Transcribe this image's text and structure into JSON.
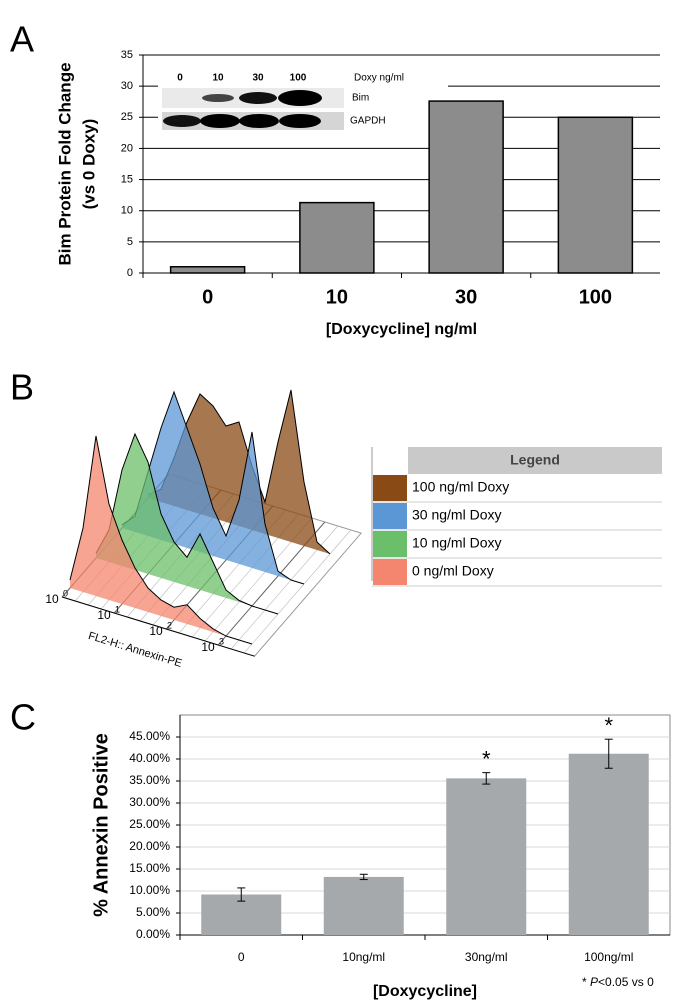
{
  "chart_data": [
    {
      "type": "bar",
      "panel": "A",
      "ylabel": [
        "Bim Protein Fold Change",
        "(vs 0 Doxy)"
      ],
      "xlabel": "[Doxycycline] ng/ml",
      "categories": [
        "0",
        "10",
        "30",
        "100"
      ],
      "values": [
        1,
        11.3,
        27.6,
        25
      ],
      "color": "#8c8c8c",
      "ylim": [
        0,
        35
      ],
      "yticks": [
        0,
        5,
        10,
        15,
        20,
        25,
        30,
        35
      ],
      "grid": true,
      "inset": {
        "columns": [
          "0",
          "10",
          "30",
          "100"
        ],
        "columns_label": "Doxy ng/ml",
        "rows": [
          "Bim",
          "GAPDH"
        ]
      }
    },
    {
      "type": "density-stack",
      "panel": "B",
      "xlabel": "FL2-H:: Annexin-PE",
      "xscale": "log",
      "xlim": [
        1,
        5000
      ],
      "xticks": [
        {
          "value": 1,
          "label": "10",
          "exponent": "0"
        },
        {
          "value": 10,
          "label": "10",
          "exponent": "1"
        },
        {
          "value": 100,
          "label": "10",
          "exponent": "2"
        },
        {
          "value": 1000,
          "label": "10",
          "exponent": "3"
        }
      ],
      "x": [
        1,
        1.78,
        3.16,
        5.62,
        10,
        17.8,
        31.6,
        56.2,
        100,
        178,
        316,
        562,
        1000,
        1778,
        3162
      ],
      "legend_title": "Legend",
      "series": [
        {
          "name": "0 ng/ml Doxy",
          "color": "#f4866f",
          "values": [
            5,
            40,
            100,
            60,
            40,
            25,
            15,
            10,
            8,
            12,
            6,
            2,
            0,
            0,
            0
          ]
        },
        {
          "name": "10 ng/ml Doxy",
          "color": "#6cbf6a",
          "values": [
            3,
            20,
            60,
            85,
            70,
            40,
            25,
            18,
            35,
            20,
            5,
            1,
            0,
            0,
            0
          ]
        },
        {
          "name": "30 ng/ml Doxy",
          "color": "#5b97d4",
          "values": [
            2,
            10,
            40,
            70,
            95,
            75,
            55,
            30,
            15,
            40,
            85,
            30,
            3,
            0,
            0
          ]
        },
        {
          "name": "100 ng/ml Doxy",
          "color": "#8a4a16",
          "values": [
            2,
            8,
            30,
            55,
            75,
            70,
            60,
            65,
            40,
            20,
            60,
            95,
            40,
            5,
            0
          ]
        }
      ]
    },
    {
      "type": "bar",
      "panel": "C",
      "ylabel": [
        "% Annexin Positive"
      ],
      "xlabel": "[Doxycycline]",
      "categories": [
        "0",
        "10ng/ml",
        "30ng/ml",
        "100ng/ml"
      ],
      "values": [
        9.2,
        13.2,
        35.6,
        41.2
      ],
      "errors": [
        1.5,
        0.6,
        1.3,
        3.3
      ],
      "significance": [
        null,
        null,
        "*",
        "*"
      ],
      "color": "#a6a9ab",
      "ylim": [
        0,
        50
      ],
      "yticks": [
        {
          "value": 0,
          "label": "0.00%"
        },
        {
          "value": 5,
          "label": "5.00%"
        },
        {
          "value": 10,
          "label": "10.00%"
        },
        {
          "value": 15,
          "label": "15.00%"
        },
        {
          "value": 20,
          "label": "20.00%"
        },
        {
          "value": 25,
          "label": "25.00%"
        },
        {
          "value": 30,
          "label": "30.00%"
        },
        {
          "value": 35,
          "label": "35.00%"
        },
        {
          "value": 40,
          "label": "40.00%"
        },
        {
          "value": 45,
          "label": "45.00%"
        }
      ],
      "grid": true,
      "footnote": [
        "* ",
        "P",
        "<0.05 vs 0"
      ]
    }
  ]
}
